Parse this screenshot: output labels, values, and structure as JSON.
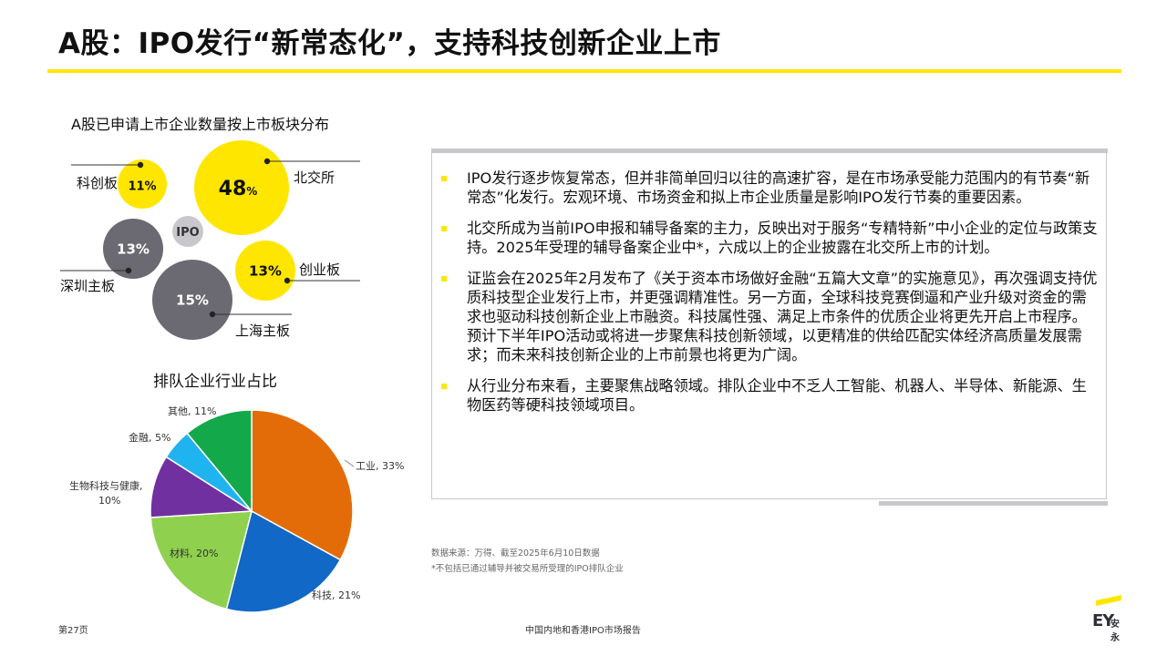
{
  "page_title": "A股：IPO发行“新常态化”，支持科技创新企业上市",
  "colors": {
    "accent": "#ffe600",
    "grey_bubble": "#6b6a72",
    "light_bubble": "#c8c8cc"
  },
  "chart_data": [
    {
      "type": "bubble",
      "title": "A股已申请上市企业数量按上市板块分布",
      "center_label": "IPO",
      "series": [
        {
          "name": "北交所",
          "value": 48,
          "label": "48%",
          "color": "#ffe600"
        },
        {
          "name": "科创板",
          "value": 11,
          "label": "11%",
          "color": "#ffe600"
        },
        {
          "name": "深圳主板",
          "value": 13,
          "label": "13%",
          "color": "#6b6a72"
        },
        {
          "name": "创业板",
          "value": 13,
          "label": "13%",
          "color": "#ffe600"
        },
        {
          "name": "上海主板",
          "value": 15,
          "label": "15%",
          "color": "#6b6a72"
        }
      ]
    },
    {
      "type": "pie",
      "title": "排队企业行业占比",
      "unit": "%",
      "slices": [
        {
          "name": "工业",
          "value": 33,
          "label": "工业, 33%",
          "color": "#e36c09"
        },
        {
          "name": "科技",
          "value": 21,
          "label": "科技, 21%",
          "color": "#1168c6"
        },
        {
          "name": "材料",
          "value": 20,
          "label": "材料, 20%",
          "color": "#8fd14f"
        },
        {
          "name": "生物科技与健康",
          "value": 10,
          "label": "生物科技与健康, 10%",
          "color": "#7030a0"
        },
        {
          "name": "金融",
          "value": 5,
          "label": "金融, 5%",
          "color": "#1fb4ef"
        },
        {
          "name": "其他",
          "value": 11,
          "label": "其他, 11%",
          "color": "#13a84a"
        }
      ]
    }
  ],
  "bullets": [
    "IPO发行逐步恢复常态，但并非简单回归以往的高速扩容，是在市场承受能力范围内的有节奏“新常态”化发行。宏观环境、市场资金和拟上市企业质量是影响IPO发行节奏的重要因素。",
    "北交所成为当前IPO申报和辅导备案的主力，反映出对于服务“专精特新”中小企业的定位与政策支持。2025年受理的辅导备案企业中*，六成以上的企业披露在北交所上市的计划。",
    "证监会在2025年2月发布了《关于资本市场做好金融“五篇大文章”的实施意见》，再次强调支持优质科技型企业发行上市，并更强调精准性。另一方面，全球科技竞赛倒逼和产业升级对资金的需求也驱动科技创新企业上市融资。科技属性强、满足上市条件的优质企业将更先开启上市程序。预计下半年IPO活动或将进一步聚焦科技创新领域，以更精准的供给匹配实体经济高质量发展需求；而未来科技创新企业的上市前景也将更为广阔。",
    "从行业分布来看，主要聚焦战略领域。排队企业中不乏人工智能、机器人、半导体、新能源、生物医药等硬科技领域项目。"
  ],
  "source_lines": [
    "数据来源：万得、截至2025年6月10日数据",
    "*不包括已通过辅导并被交易所受理的IPO排队企业"
  ],
  "footer": {
    "page": "第27页",
    "report": "中国内地和香港IPO市场报告"
  },
  "logo": {
    "text": "EY",
    "cn": "安永"
  }
}
